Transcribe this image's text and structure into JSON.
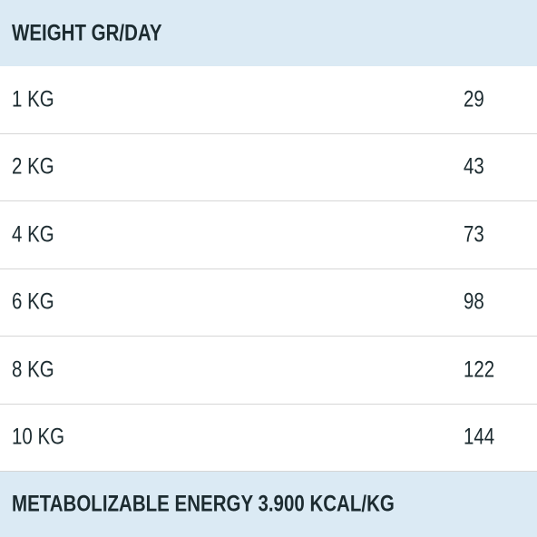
{
  "table": {
    "header": "WEIGHT GR/DAY",
    "rows": [
      [
        "1 KG",
        29
      ],
      [
        "2 KG",
        43
      ],
      [
        "4 KG",
        73
      ],
      [
        "6 KG",
        98
      ],
      [
        "8 KG",
        122
      ],
      [
        "10 KG",
        144
      ]
    ],
    "footer": "METABOLIZABLE ENERGY 3.900 KCAL/KG"
  }
}
